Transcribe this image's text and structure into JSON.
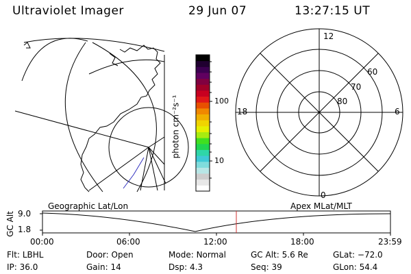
{
  "header": {
    "instrument": "Ultraviolet Imager",
    "date": "29 Jun 07",
    "time": "13:27:15 UT"
  },
  "colorbar": {
    "label": "photon cm⁻²s⁻¹",
    "ticks": [
      "100",
      "10"
    ],
    "colors": [
      "#ffffff",
      "#e8e8e8",
      "#cdcdcd",
      "#b8e6e6",
      "#7fdcdc",
      "#3fc9d6",
      "#2fd6a8",
      "#20d650",
      "#40e020",
      "#a8ec10",
      "#e6f000",
      "#f0d400",
      "#f0b000",
      "#f08800",
      "#e85000",
      "#e01818",
      "#c80020",
      "#a00028",
      "#800040",
      "#600060",
      "#3c0050",
      "#200030",
      "#000000"
    ]
  },
  "left_panel": {
    "label": "Geographic Lat/Lon"
  },
  "right_panel": {
    "label": "Apex MLat/MLT",
    "lat_labels": [
      "60",
      "70",
      "80"
    ],
    "mlt_labels": [
      "12",
      "18",
      "6",
      "0"
    ]
  },
  "timeline": {
    "y_axis_label": "GC Alt",
    "y_ticks": [
      "9.0",
      "1.8"
    ],
    "time_ticks": [
      "00:00",
      "06:00",
      "12:00",
      "18:00",
      "23:59"
    ]
  },
  "info": {
    "row1": [
      {
        "k": "Flt:",
        "v": "LBHL"
      },
      {
        "k": "Door:",
        "v": "Open"
      },
      {
        "k": "Mode:",
        "v": "Normal"
      },
      {
        "k": "GC Alt:",
        "v": "5.6 Re"
      },
      {
        "k": "GLat:",
        "v": "−72.0"
      }
    ],
    "row2": [
      {
        "k": "IP:",
        "v": "36.0"
      },
      {
        "k": "Gain:",
        "v": "14"
      },
      {
        "k": "Dsp:",
        "v": "4.3"
      },
      {
        "k": "Seq:",
        "v": "39"
      },
      {
        "k": "GLon:",
        "v": "54.4"
      }
    ]
  }
}
